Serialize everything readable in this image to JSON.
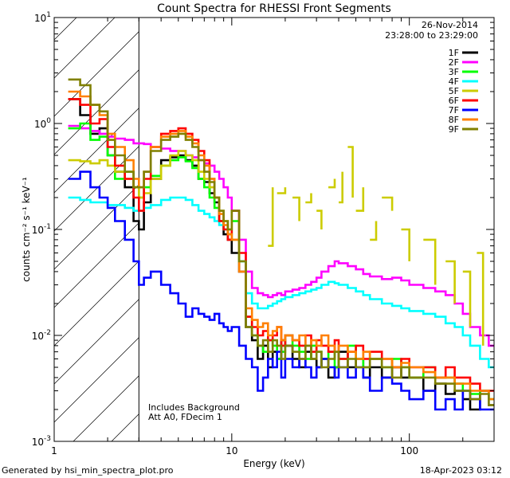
{
  "footer": {
    "generated_by": "Generated by hsi_min_spectra_plot.pro",
    "timestamp": "18-Apr-2023 03:12"
  },
  "chart_data": {
    "type": "line",
    "title": "Count Spectra for RHESSI Front Segments",
    "xlabel": "Energy (keV)",
    "ylabel": "counts cm⁻² s⁻¹ keV⁻¹",
    "xscale": "log",
    "yscale": "log",
    "xlim": [
      1,
      300
    ],
    "ylim": [
      0.001,
      10
    ],
    "x_ticks": [
      {
        "value": 1,
        "label": "1"
      },
      {
        "value": 10,
        "label": "10"
      },
      {
        "value": 100,
        "label": "100"
      }
    ],
    "y_ticks": [
      {
        "value": 10,
        "base": "10",
        "exp": "1"
      },
      {
        "value": 1,
        "base": "10",
        "exp": "0"
      },
      {
        "value": 0.1,
        "base": "10",
        "exp": "-1"
      },
      {
        "value": 0.01,
        "base": "10",
        "exp": "-2"
      },
      {
        "value": 0.001,
        "base": "10",
        "exp": "-3"
      }
    ],
    "date": "26-Nov-2014",
    "time_range": "23:28:00 to 23:29:00",
    "annotation": [
      "Includes Background",
      "Att A0, FDecim 1"
    ],
    "hatched_region": [
      1,
      3
    ],
    "legend_position": "top-right",
    "series": [
      {
        "name": "1F",
        "color": "#000000",
        "x": [
          1.2,
          1.4,
          1.6,
          1.8,
          2.0,
          2.2,
          2.5,
          2.8,
          3.0,
          3.2,
          3.5,
          4.0,
          4.5,
          5.0,
          5.5,
          6.0,
          6.5,
          7.0,
          7.5,
          8.0,
          8.5,
          9.0,
          9.5,
          10,
          11,
          12,
          13,
          14,
          15,
          16,
          17,
          18,
          19,
          20,
          22,
          24,
          26,
          28,
          30,
          32,
          35,
          38,
          40,
          45,
          50,
          55,
          60,
          70,
          80,
          90,
          100,
          120,
          140,
          160,
          180,
          200,
          220,
          250,
          280
        ],
        "y": [
          1.7,
          1.2,
          0.8,
          0.9,
          0.5,
          0.35,
          0.25,
          0.12,
          0.1,
          0.18,
          0.3,
          0.45,
          0.48,
          0.5,
          0.45,
          0.4,
          0.3,
          0.28,
          0.22,
          0.18,
          0.12,
          0.09,
          0.08,
          0.06,
          0.04,
          0.012,
          0.009,
          0.006,
          0.008,
          0.005,
          0.007,
          0.006,
          0.009,
          0.008,
          0.006,
          0.005,
          0.007,
          0.006,
          0.005,
          0.006,
          0.004,
          0.005,
          0.007,
          0.005,
          0.006,
          0.004,
          0.005,
          0.004,
          0.005,
          0.004,
          0.004,
          0.003,
          0.0035,
          0.0028,
          0.003,
          0.0025,
          0.002,
          0.003,
          0.0022
        ]
      },
      {
        "name": "2F",
        "color": "#ff00ff",
        "x": [
          1.2,
          1.4,
          1.6,
          1.8,
          2.0,
          2.2,
          2.5,
          2.8,
          3.0,
          3.2,
          3.5,
          4.0,
          4.5,
          5.0,
          5.5,
          6.0,
          6.5,
          7.0,
          7.5,
          8.0,
          8.5,
          9.0,
          9.5,
          10,
          11,
          12,
          13,
          14,
          15,
          16,
          17,
          18,
          19,
          20,
          22,
          24,
          26,
          28,
          30,
          32,
          35,
          38,
          40,
          45,
          50,
          55,
          60,
          70,
          80,
          90,
          100,
          120,
          140,
          160,
          180,
          200,
          220,
          250,
          280
        ],
        "y": [
          0.95,
          0.9,
          0.85,
          0.8,
          0.75,
          0.72,
          0.7,
          0.65,
          0.65,
          0.64,
          0.6,
          0.58,
          0.55,
          0.55,
          0.5,
          0.48,
          0.45,
          0.42,
          0.4,
          0.35,
          0.3,
          0.25,
          0.2,
          0.15,
          0.08,
          0.04,
          0.028,
          0.025,
          0.024,
          0.023,
          0.024,
          0.025,
          0.024,
          0.026,
          0.027,
          0.028,
          0.03,
          0.032,
          0.035,
          0.04,
          0.045,
          0.05,
          0.048,
          0.045,
          0.042,
          0.038,
          0.036,
          0.034,
          0.035,
          0.033,
          0.03,
          0.028,
          0.026,
          0.024,
          0.02,
          0.016,
          0.012,
          0.01,
          0.008
        ]
      },
      {
        "name": "3F",
        "color": "#00ff00",
        "x": [
          1.2,
          1.4,
          1.6,
          1.8,
          2.0,
          2.2,
          2.5,
          2.8,
          3.0,
          3.2,
          3.5,
          4.0,
          4.5,
          5.0,
          5.5,
          6.0,
          6.5,
          7.0,
          7.5,
          8.0,
          8.5,
          9.0,
          9.5,
          10,
          11,
          12,
          13,
          14,
          15,
          16,
          17,
          18,
          19,
          20,
          22,
          24,
          26,
          28,
          30,
          32,
          35,
          38,
          40,
          45,
          50,
          55,
          60,
          70,
          80,
          90,
          100,
          120,
          140,
          160,
          180,
          200,
          220,
          250,
          280
        ],
        "y": [
          0.9,
          1.0,
          0.7,
          0.75,
          0.5,
          0.3,
          0.35,
          0.25,
          0.2,
          0.25,
          0.32,
          0.4,
          0.45,
          0.48,
          0.44,
          0.38,
          0.3,
          0.25,
          0.2,
          0.16,
          0.12,
          0.1,
          0.09,
          0.12,
          0.05,
          0.015,
          0.01,
          0.008,
          0.007,
          0.009,
          0.008,
          0.006,
          0.007,
          0.01,
          0.008,
          0.007,
          0.006,
          0.008,
          0.007,
          0.006,
          0.007,
          0.005,
          0.006,
          0.008,
          0.006,
          0.005,
          0.006,
          0.005,
          0.006,
          0.005,
          0.004,
          0.005,
          0.004,
          0.004,
          0.0035,
          0.003,
          0.0028,
          0.003,
          0.0025
        ]
      },
      {
        "name": "4F",
        "color": "#00ffff",
        "x": [
          1.2,
          1.4,
          1.6,
          1.8,
          2.0,
          2.2,
          2.5,
          2.8,
          3.0,
          3.2,
          3.5,
          4.0,
          4.5,
          5.0,
          5.5,
          6.0,
          6.5,
          7.0,
          7.5,
          8.0,
          8.5,
          9.0,
          9.5,
          10,
          11,
          12,
          13,
          14,
          15,
          16,
          17,
          18,
          19,
          20,
          22,
          24,
          26,
          28,
          30,
          32,
          35,
          38,
          40,
          45,
          50,
          55,
          60,
          70,
          80,
          90,
          100,
          120,
          140,
          160,
          180,
          200,
          220,
          250,
          280
        ],
        "y": [
          0.2,
          0.19,
          0.18,
          0.18,
          0.17,
          0.17,
          0.16,
          0.15,
          0.15,
          0.16,
          0.17,
          0.19,
          0.2,
          0.2,
          0.19,
          0.17,
          0.15,
          0.14,
          0.13,
          0.12,
          0.11,
          0.1,
          0.09,
          0.08,
          0.05,
          0.025,
          0.02,
          0.018,
          0.018,
          0.019,
          0.02,
          0.021,
          0.022,
          0.023,
          0.024,
          0.025,
          0.026,
          0.027,
          0.028,
          0.03,
          0.032,
          0.031,
          0.03,
          0.028,
          0.026,
          0.024,
          0.022,
          0.02,
          0.019,
          0.018,
          0.017,
          0.016,
          0.015,
          0.013,
          0.012,
          0.01,
          0.008,
          0.006,
          0.005
        ]
      },
      {
        "name": "5F",
        "color": "#cccc00",
        "x": [
          1.2,
          1.4,
          1.6,
          1.8,
          2.0,
          2.2,
          2.5,
          2.8,
          3.0,
          3.2,
          3.5,
          4.0,
          4.5,
          5.0,
          5.5,
          6.0,
          6.5,
          7.0,
          7.5,
          8.0,
          8.5,
          9.0,
          9.5,
          10
        ],
        "y": [
          0.45,
          0.44,
          0.42,
          0.45,
          0.4,
          0.35,
          0.3,
          0.25,
          0.2,
          0.22,
          0.3,
          0.4,
          0.5,
          0.55,
          0.5,
          0.45,
          0.35,
          0.3,
          0.25,
          0.2,
          0.15,
          0.12,
          0.1,
          0.08
        ]
      },
      {
        "name": "5F-high",
        "color": "#cccc00",
        "legend": false,
        "fragmented": true,
        "x": [
          16,
          17,
          18,
          20,
          22,
          24,
          26,
          28,
          30,
          32,
          35,
          38,
          40,
          42,
          45,
          48,
          50,
          55,
          60,
          65,
          70,
          80,
          90,
          100,
          120,
          140,
          160,
          180,
          200,
          220,
          240,
          260,
          280
        ],
        "y": [
          0.07,
          0.25,
          0.22,
          0.25,
          0.2,
          0.12,
          0.18,
          0.22,
          0.15,
          0.1,
          0.25,
          0.3,
          0.18,
          0.35,
          0.6,
          0.2,
          0.15,
          0.25,
          0.08,
          0.12,
          0.2,
          0.15,
          0.1,
          0.05,
          0.08,
          0.03,
          0.05,
          0.02,
          0.04,
          0.012,
          0.06,
          0.008,
          0.004
        ]
      },
      {
        "name": "6F",
        "color": "#ff0000",
        "x": [
          1.2,
          1.4,
          1.6,
          1.8,
          2.0,
          2.2,
          2.5,
          2.8,
          3.0,
          3.2,
          3.5,
          4.0,
          4.5,
          5.0,
          5.5,
          6.0,
          6.5,
          7.0,
          7.5,
          8.0,
          8.5,
          9.0,
          9.5,
          10,
          11,
          12,
          13,
          14,
          15,
          16,
          17,
          18,
          19,
          20,
          22,
          24,
          26,
          28,
          30,
          32,
          35,
          38,
          40,
          45,
          50,
          55,
          60,
          70,
          80,
          90,
          100,
          120,
          140,
          160,
          180,
          200,
          220,
          250,
          280
        ],
        "y": [
          1.7,
          1.5,
          1.0,
          1.1,
          0.6,
          0.4,
          0.3,
          0.2,
          0.15,
          0.3,
          0.6,
          0.8,
          0.85,
          0.9,
          0.8,
          0.7,
          0.55,
          0.45,
          0.3,
          0.2,
          0.12,
          0.1,
          0.08,
          0.15,
          0.06,
          0.015,
          0.012,
          0.01,
          0.011,
          0.009,
          0.01,
          0.012,
          0.008,
          0.01,
          0.009,
          0.008,
          0.01,
          0.007,
          0.009,
          0.008,
          0.007,
          0.009,
          0.006,
          0.007,
          0.008,
          0.006,
          0.007,
          0.006,
          0.005,
          0.006,
          0.005,
          0.005,
          0.004,
          0.005,
          0.004,
          0.004,
          0.0035,
          0.003,
          0.003
        ]
      },
      {
        "name": "7F",
        "color": "#0000ff",
        "x": [
          1.2,
          1.4,
          1.6,
          1.8,
          2.0,
          2.2,
          2.5,
          2.8,
          3.0,
          3.2,
          3.5,
          4.0,
          4.5,
          5.0,
          5.5,
          6.0,
          6.5,
          7.0,
          7.5,
          8.0,
          8.5,
          9.0,
          9.5,
          10,
          11,
          12,
          13,
          14,
          15,
          16,
          17,
          18,
          19,
          20,
          22,
          24,
          26,
          28,
          30,
          32,
          35,
          38,
          40,
          45,
          50,
          55,
          60,
          70,
          80,
          90,
          100,
          120,
          140,
          160,
          180,
          200,
          220,
          250,
          280
        ],
        "y": [
          0.3,
          0.35,
          0.25,
          0.2,
          0.16,
          0.12,
          0.08,
          0.05,
          0.03,
          0.035,
          0.04,
          0.03,
          0.025,
          0.02,
          0.015,
          0.018,
          0.016,
          0.015,
          0.014,
          0.016,
          0.013,
          0.012,
          0.011,
          0.012,
          0.008,
          0.006,
          0.005,
          0.003,
          0.004,
          0.006,
          0.005,
          0.007,
          0.004,
          0.006,
          0.005,
          0.006,
          0.005,
          0.004,
          0.005,
          0.006,
          0.005,
          0.004,
          0.005,
          0.004,
          0.005,
          0.004,
          0.003,
          0.004,
          0.0035,
          0.003,
          0.0025,
          0.003,
          0.002,
          0.0025,
          0.002,
          0.003,
          0.0025,
          0.002,
          0.002
        ]
      },
      {
        "name": "8F",
        "color": "#ff8000",
        "x": [
          1.2,
          1.4,
          1.6,
          1.8,
          2.0,
          2.2,
          2.5,
          2.8,
          3.0,
          3.2,
          3.5,
          4.0,
          4.5,
          5.0,
          5.5,
          6.0,
          6.5,
          7.0,
          7.5,
          8.0,
          8.5,
          9.0,
          9.5,
          10,
          11,
          12,
          13,
          14,
          15,
          16,
          17,
          18,
          19,
          20,
          22,
          24,
          26,
          28,
          30,
          32,
          35,
          38,
          40,
          45,
          50,
          55,
          60,
          70,
          80,
          90,
          100,
          120,
          140,
          160,
          180,
          200,
          220,
          250,
          280
        ],
        "y": [
          2.0,
          1.8,
          1.5,
          1.2,
          0.8,
          0.6,
          0.45,
          0.3,
          0.25,
          0.35,
          0.6,
          0.75,
          0.8,
          0.85,
          0.75,
          0.65,
          0.5,
          0.4,
          0.3,
          0.2,
          0.14,
          0.11,
          0.09,
          0.08,
          0.04,
          0.018,
          0.014,
          0.012,
          0.013,
          0.01,
          0.011,
          0.012,
          0.009,
          0.01,
          0.009,
          0.01,
          0.008,
          0.009,
          0.008,
          0.01,
          0.008,
          0.007,
          0.008,
          0.007,
          0.006,
          0.007,
          0.006,
          0.006,
          0.005,
          0.0055,
          0.005,
          0.0045,
          0.004,
          0.004,
          0.0035,
          0.0035,
          0.003,
          0.003,
          0.0025
        ]
      },
      {
        "name": "9F",
        "color": "#808000",
        "x": [
          1.2,
          1.4,
          1.6,
          1.8,
          2.0,
          2.2,
          2.5,
          2.8,
          3.0,
          3.2,
          3.5,
          4.0,
          4.5,
          5.0,
          5.5,
          6.0,
          6.5,
          7.0,
          7.5,
          8.0,
          8.5,
          9.0,
          9.5,
          10,
          11,
          12,
          13,
          14,
          15,
          16,
          17,
          18,
          19,
          20,
          22,
          24,
          26,
          28,
          30,
          32,
          35,
          38,
          40,
          45,
          50,
          55,
          60,
          70,
          80,
          90,
          100,
          120,
          140,
          160,
          180,
          200,
          220,
          250,
          280
        ],
        "y": [
          2.6,
          2.3,
          1.5,
          1.3,
          0.7,
          0.5,
          0.35,
          0.25,
          0.25,
          0.35,
          0.55,
          0.7,
          0.75,
          0.8,
          0.7,
          0.6,
          0.45,
          0.35,
          0.28,
          0.2,
          0.15,
          0.12,
          0.1,
          0.15,
          0.05,
          0.012,
          0.01,
          0.008,
          0.009,
          0.007,
          0.009,
          0.008,
          0.006,
          0.008,
          0.007,
          0.006,
          0.008,
          0.006,
          0.007,
          0.005,
          0.006,
          0.007,
          0.005,
          0.006,
          0.005,
          0.005,
          0.006,
          0.005,
          0.004,
          0.005,
          0.004,
          0.004,
          0.0035,
          0.0035,
          0.003,
          0.003,
          0.0025,
          0.0028,
          0.0022
        ]
      }
    ]
  }
}
